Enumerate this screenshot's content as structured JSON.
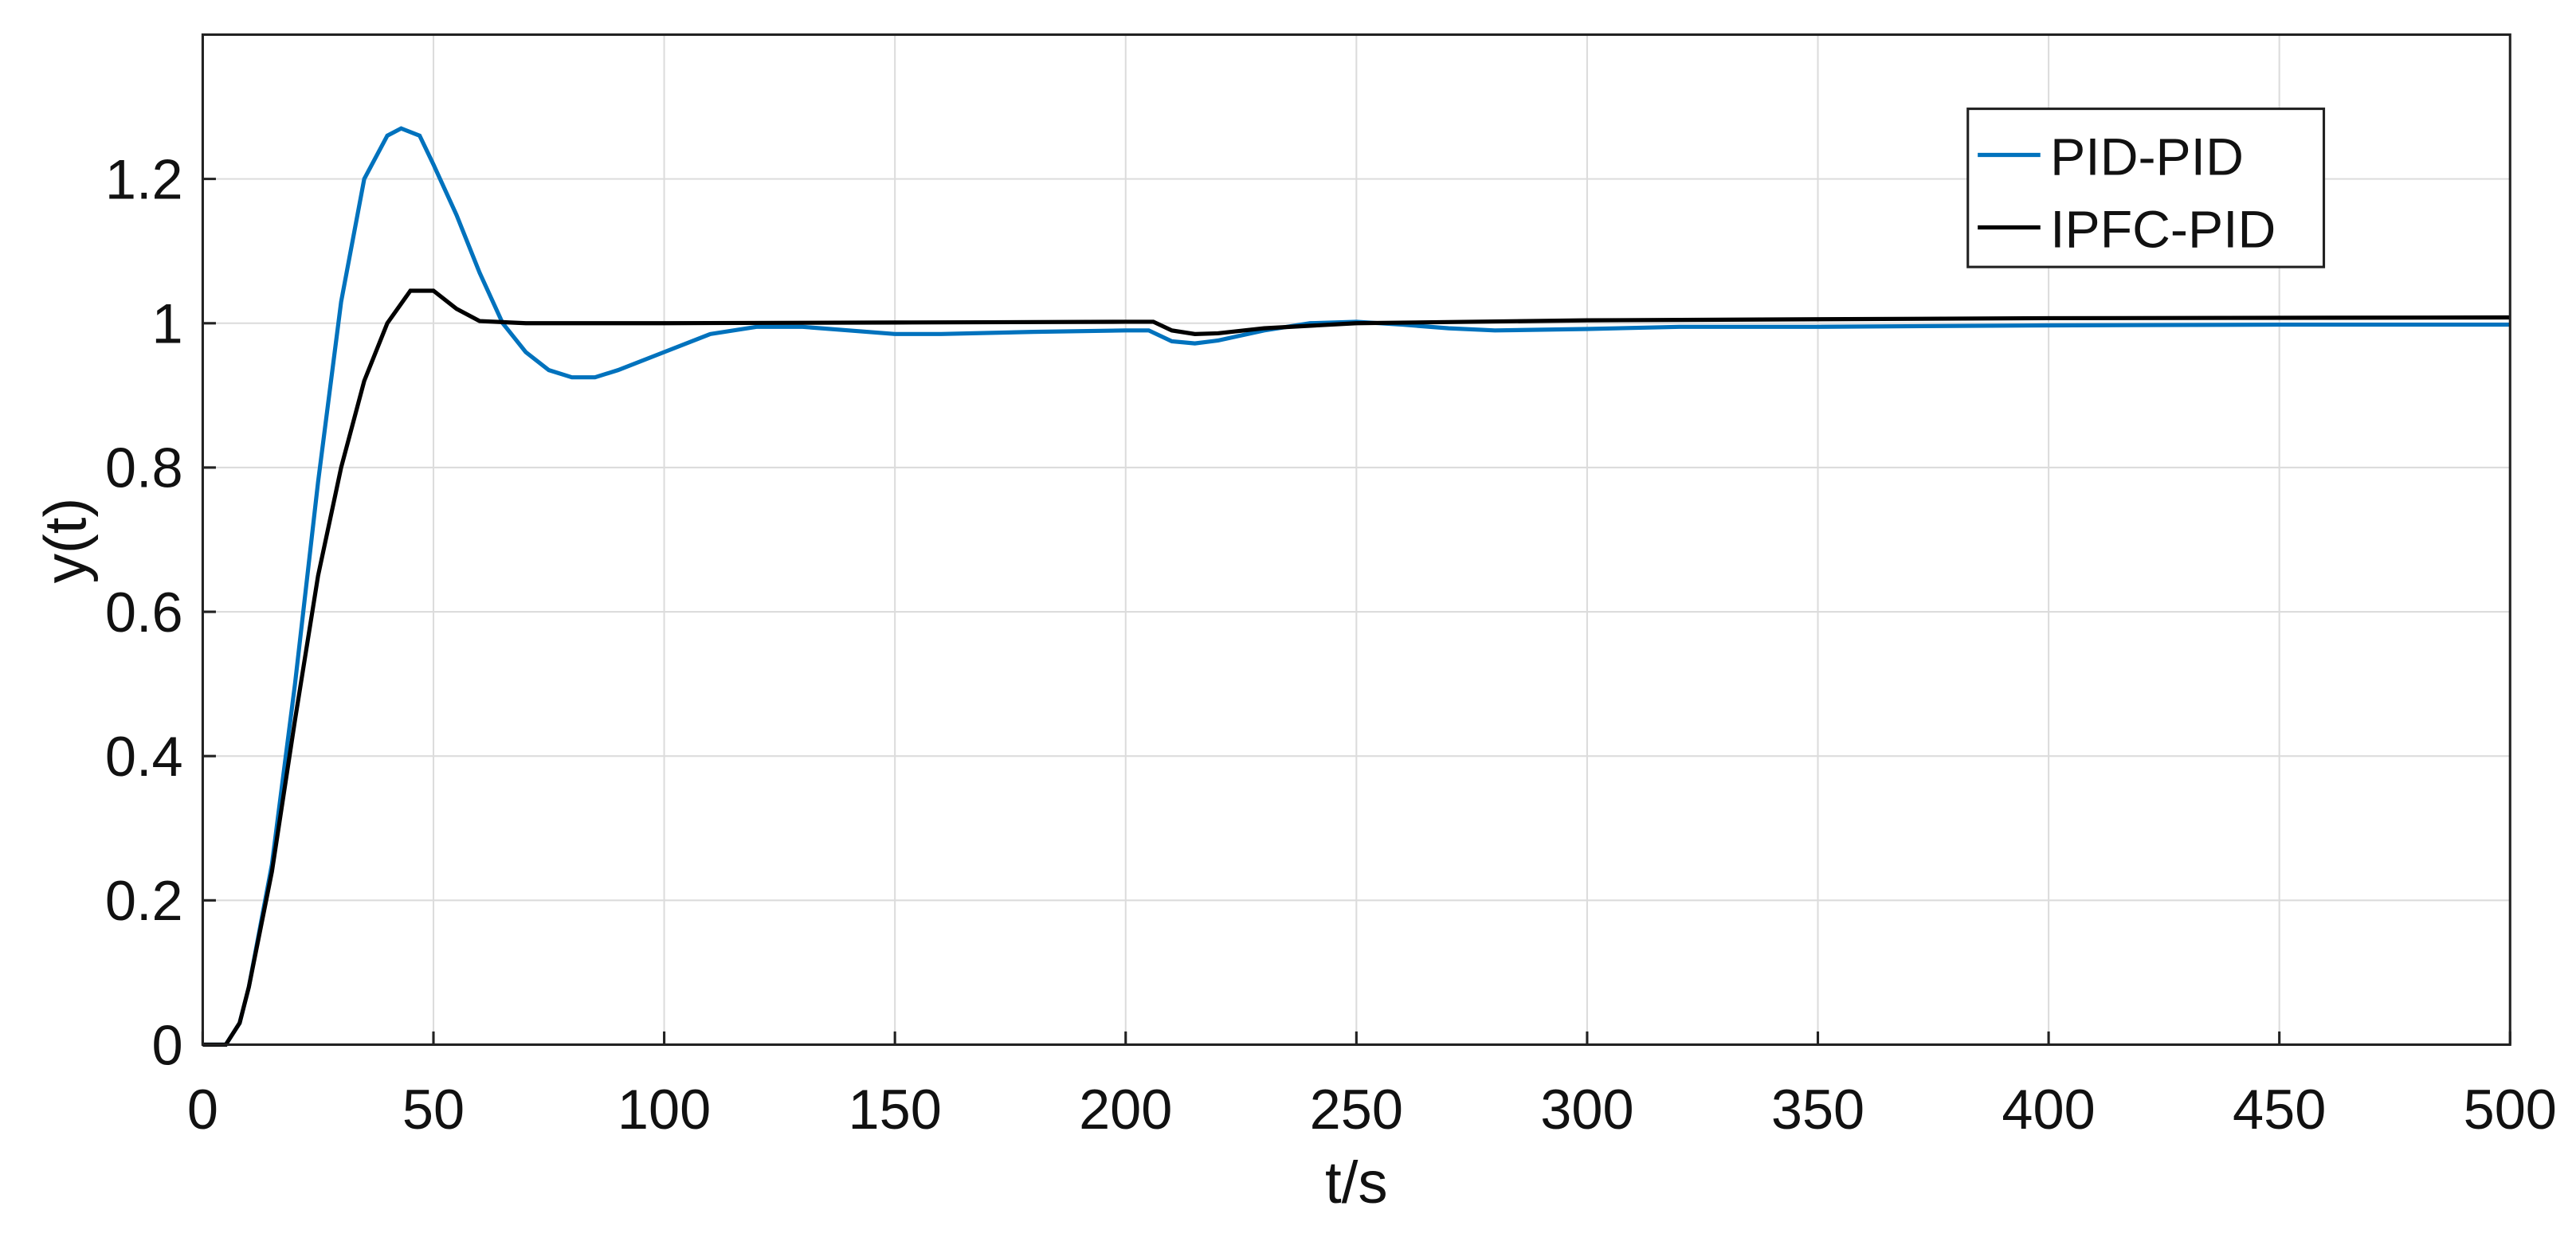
{
  "chart_data": {
    "type": "line",
    "xlabel": "t/s",
    "ylabel": "y(t)",
    "xlim": [
      0,
      500
    ],
    "ylim": [
      0,
      1.4
    ],
    "xticks": [
      0,
      50,
      100,
      150,
      200,
      250,
      300,
      350,
      400,
      450,
      500
    ],
    "yticks": [
      0,
      0.2,
      0.4,
      0.6,
      0.8,
      1,
      1.2
    ],
    "grid": true,
    "legend": "upper-right",
    "series": [
      {
        "name": "PID-PID",
        "color": "#0072bd",
        "x": [
          0,
          5,
          8,
          10,
          15,
          20,
          25,
          30,
          35,
          40,
          43,
          47,
          50,
          55,
          60,
          65,
          70,
          75,
          80,
          85,
          90,
          100,
          110,
          120,
          130,
          140,
          150,
          160,
          180,
          200,
          205,
          210,
          215,
          220,
          230,
          240,
          250,
          260,
          270,
          280,
          300,
          320,
          350,
          400,
          450,
          500
        ],
        "values": [
          0,
          0,
          0.03,
          0.08,
          0.25,
          0.5,
          0.78,
          1.03,
          1.2,
          1.26,
          1.27,
          1.26,
          1.22,
          1.15,
          1.07,
          1.0,
          0.96,
          0.935,
          0.925,
          0.925,
          0.935,
          0.96,
          0.985,
          0.995,
          0.995,
          0.99,
          0.985,
          0.985,
          0.988,
          0.99,
          0.99,
          0.975,
          0.972,
          0.976,
          0.99,
          1.0,
          1.002,
          0.998,
          0.993,
          0.99,
          0.992,
          0.995,
          0.995,
          0.997,
          0.998,
          0.998
        ]
      },
      {
        "name": "IPFC-PID",
        "color": "#000000",
        "x": [
          0,
          5,
          8,
          10,
          15,
          20,
          25,
          30,
          35,
          40,
          45,
          50,
          55,
          60,
          70,
          100,
          150,
          200,
          206,
          210,
          215,
          220,
          230,
          250,
          300,
          400,
          500
        ],
        "values": [
          0,
          0,
          0.03,
          0.08,
          0.24,
          0.45,
          0.65,
          0.8,
          0.92,
          1.0,
          1.045,
          1.045,
          1.02,
          1.003,
          1.0,
          1.0,
          1.001,
          1.002,
          1.002,
          0.99,
          0.985,
          0.986,
          0.993,
          1.0,
          1.004,
          1.007,
          1.008
        ]
      }
    ]
  }
}
